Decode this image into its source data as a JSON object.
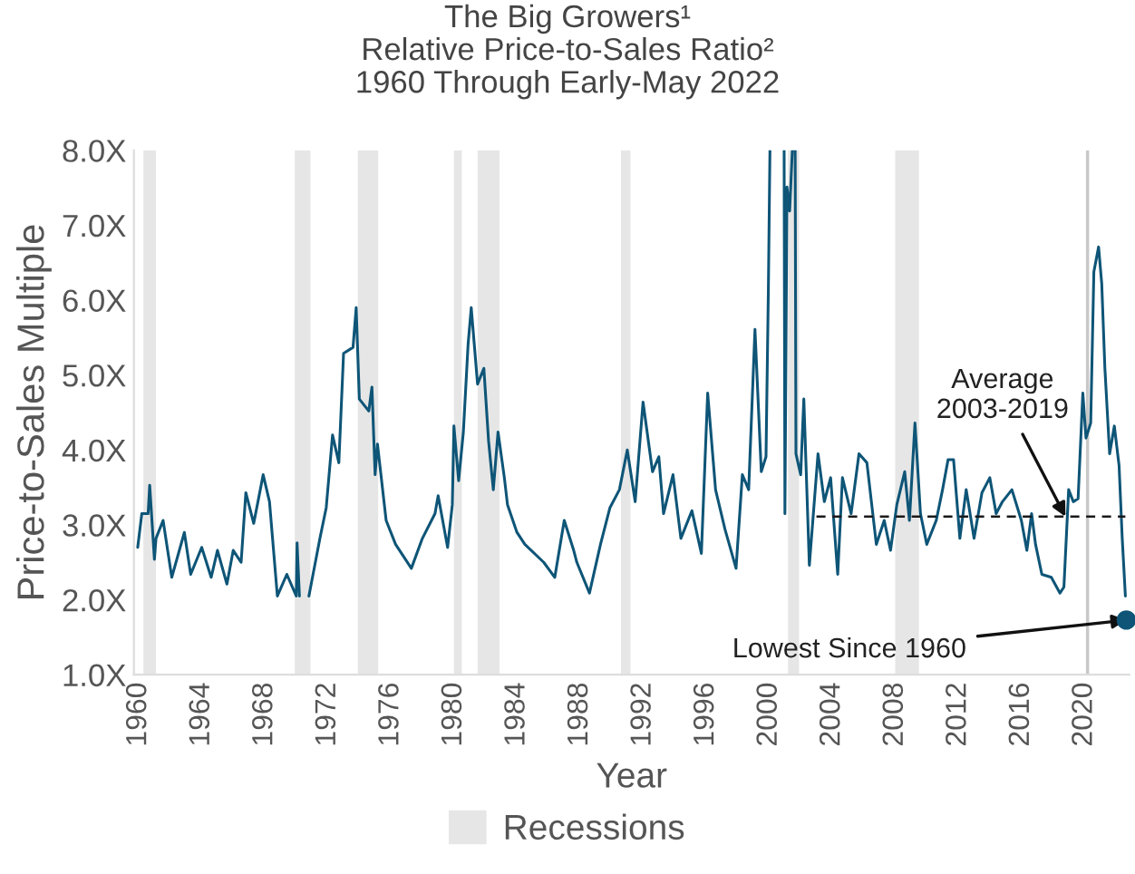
{
  "chart_data": {
    "type": "line",
    "title": "The Big Growers¹\nRelative Price-to-Sales Ratio²\n1960 Through Early-May 2022",
    "xlabel": "Year",
    "ylabel": "Price-to-Sales Multiple",
    "xlim": [
      1959.7,
      2022.85
    ],
    "xticks": [
      1960,
      1964,
      1968,
      1972,
      1976,
      1980,
      1984,
      1988,
      1992,
      1996,
      2000,
      2004,
      2008,
      2012,
      2016,
      2020
    ],
    "ylim": [
      1,
      8
    ],
    "yticks": [
      {
        "value": 1,
        "label": "1.0X"
      },
      {
        "value": 2,
        "label": "2.0X"
      },
      {
        "value": 3,
        "label": "3.0X"
      },
      {
        "value": 4,
        "label": "4.0X"
      },
      {
        "value": 5,
        "label": "5.0X"
      },
      {
        "value": 6,
        "label": "6.0X"
      },
      {
        "value": 7,
        "label": "7.0X"
      },
      {
        "value": 8,
        "label": "8.0X"
      }
    ],
    "grid": false,
    "legend": "bottom",
    "series": [
      {
        "color": "#0e5577",
        "x": [
          1959.94,
          1960.2,
          1960.6,
          1960.7,
          1961.0,
          1961.1,
          1961.55,
          1962.1,
          1962.9,
          1963.3,
          1964.0,
          1964.6,
          1965.0,
          1965.6,
          1966.0,
          1966.5,
          1966.8,
          1967.3,
          1967.9,
          1968.3,
          1968.8,
          1969.4,
          1970.0,
          1970.05,
          1970.2,
          1970.5,
          1970.8,
          1971.5,
          1971.9,
          1972.3,
          1972.7,
          1973.0,
          1973.6,
          1973.8,
          1974.0,
          1974.6,
          1974.8,
          1975.0,
          1975.15,
          1975.7,
          1976.3,
          1977.3,
          1978.0,
          1978.8,
          1979.0,
          1979.6,
          1979.9,
          1980.0,
          1980.3,
          1980.6,
          1980.9,
          1981.1,
          1981.5,
          1981.9,
          1982.2,
          1982.5,
          1982.8,
          1983.2,
          1983.4,
          1984.0,
          1984.5,
          1985.7,
          1986.4,
          1987.0,
          1987.6,
          1987.8,
          1988.6,
          1989.3,
          1989.9,
          1990.5,
          1991.0,
          1991.5,
          1992.0,
          1992.6,
          1993.0,
          1993.3,
          1993.9,
          1994.4,
          1995.1,
          1995.7,
          1996.1,
          1996.6,
          1997.2,
          1997.9,
          1998.3,
          1998.7,
          1999.1,
          1999.5,
          1999.8,
          1999.95,
          2000.05,
          2000.5,
          2000.95,
          2001.0,
          2001.13,
          2001.3,
          2001.47,
          2001.6,
          2001.65,
          2001.7,
          2002.0,
          2002.2,
          2002.55,
          2003.1,
          2003.5,
          2003.9,
          2004.35,
          2004.65,
          2005.2,
          2005.7,
          2006.2,
          2006.8,
          2007.3,
          2007.7,
          2008.1,
          2008.6,
          2008.9,
          2009.25,
          2009.6,
          2010.0,
          2010.6,
          2011.0,
          2011.35,
          2011.7,
          2012.1,
          2012.5,
          2013.0,
          2013.5,
          2014.0,
          2014.4,
          2014.8,
          2015.4,
          2016.0,
          2016.35,
          2016.65,
          2016.9,
          2017.3,
          2017.9,
          2018.45,
          2018.7,
          2019.0,
          2019.3,
          2019.6,
          2019.9,
          2020.1,
          2020.4,
          2020.6,
          2020.9,
          2021.1,
          2021.3,
          2021.6,
          2021.9,
          2022.2,
          2022.4,
          2022.6
        ],
        "values": [
          2.7,
          3.15,
          3.15,
          3.53,
          2.54,
          2.82,
          3.06,
          2.3,
          2.9,
          2.34,
          2.7,
          2.3,
          2.66,
          2.21,
          2.66,
          2.5,
          3.43,
          3.02,
          3.67,
          3.31,
          2.05,
          2.34,
          2.05,
          2.76,
          2.05,
          null,
          2.05,
          2.82,
          3.23,
          4.2,
          3.83,
          5.29,
          5.37,
          5.9,
          4.68,
          4.52,
          4.84,
          3.67,
          4.08,
          3.06,
          2.74,
          2.42,
          2.82,
          3.15,
          3.39,
          2.7,
          3.27,
          4.32,
          3.59,
          4.24,
          5.41,
          5.9,
          4.88,
          5.09,
          4.12,
          3.47,
          4.24,
          3.63,
          3.27,
          2.9,
          2.74,
          2.5,
          2.3,
          3.06,
          2.66,
          2.5,
          2.09,
          2.74,
          3.23,
          3.47,
          4.0,
          3.31,
          4.64,
          3.71,
          3.91,
          3.15,
          3.67,
          2.82,
          3.19,
          2.62,
          4.76,
          3.47,
          2.94,
          2.42,
          3.67,
          3.47,
          5.61,
          3.71,
          3.91,
          6.14,
          8.0,
          null,
          8.0,
          3.15,
          7.51,
          7.19,
          8.0,
          null,
          8.0,
          3.95,
          3.67,
          4.68,
          2.46,
          3.95,
          3.31,
          3.63,
          2.34,
          3.63,
          3.15,
          3.95,
          3.83,
          2.74,
          3.06,
          2.66,
          3.27,
          3.71,
          3.06,
          4.36,
          3.15,
          2.74,
          3.06,
          3.47,
          3.87,
          3.87,
          2.82,
          3.47,
          2.82,
          3.43,
          3.63,
          3.15,
          3.31,
          3.47,
          3.06,
          2.66,
          3.15,
          2.74,
          2.34,
          2.3,
          2.09,
          2.17,
          3.47,
          3.31,
          3.35,
          4.76,
          4.16,
          4.36,
          6.38,
          6.71,
          6.22,
          5.09,
          3.95,
          4.32,
          3.79,
          2.82,
          2.05
        ]
      },
      {
        "type": "line",
        "color": "#1a1a1a",
        "line_style": "dashed",
        "x": [
          2003.0,
          2022.6
        ],
        "values": [
          3.11,
          3.11
        ]
      },
      {
        "type": "scatter",
        "color": "#0e5577",
        "x": [
          2022.66
        ],
        "values": [
          1.73
        ]
      }
    ],
    "bands": [
      {
        "axis": "x",
        "from": 1960.3,
        "to": 1961.1,
        "color": "#e6e6e6",
        "label": "Recessions"
      },
      {
        "axis": "x",
        "from": 1969.9,
        "to": 1970.9,
        "color": "#e6e6e6"
      },
      {
        "axis": "x",
        "from": 1973.9,
        "to": 1975.2,
        "color": "#e6e6e6"
      },
      {
        "axis": "x",
        "from": 1980.0,
        "to": 1980.5,
        "color": "#e6e6e6"
      },
      {
        "axis": "x",
        "from": 1981.5,
        "to": 1982.9,
        "color": "#e6e6e6"
      },
      {
        "axis": "x",
        "from": 1990.6,
        "to": 1991.2,
        "color": "#e6e6e6"
      },
      {
        "axis": "x",
        "from": 2001.2,
        "to": 2001.9,
        "color": "#e6e6e6"
      },
      {
        "axis": "x",
        "from": 2008.0,
        "to": 2009.5,
        "color": "#e6e6e6"
      },
      {
        "axis": "x",
        "from": 2020.1,
        "to": 2020.3,
        "color": "#c8c8c8"
      }
    ],
    "annotations": [
      {
        "text": "Average\n2003-2019",
        "x": 2018.8,
        "y": 3.11
      },
      {
        "text": "Lowest Since 1960",
        "x": 2022.66,
        "y": 1.73
      }
    ]
  }
}
